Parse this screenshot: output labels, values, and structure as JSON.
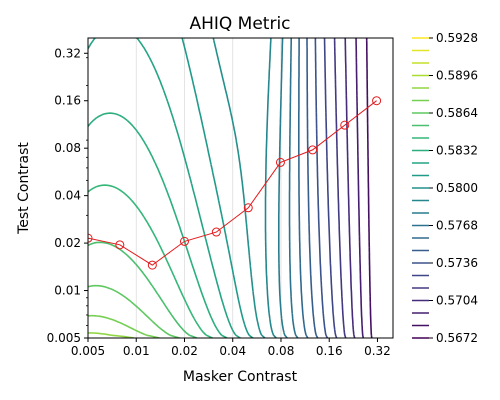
{
  "chart_data": {
    "type": "contour",
    "title": "AHIQ Metric",
    "xlabel": "Masker Contrast",
    "ylabel": "Test Contrast",
    "x_scale": "log",
    "y_scale": "log",
    "xlim": [
      0.005,
      0.4
    ],
    "ylim": [
      0.005,
      0.4
    ],
    "x_ticks": [
      0.005,
      0.01,
      0.02,
      0.04,
      0.08,
      0.16,
      0.32
    ],
    "x_tick_labels": [
      "0.005",
      "0.01",
      "0.02",
      "0.04",
      "0.08",
      "0.16",
      "0.32"
    ],
    "y_ticks": [
      0.005,
      0.01,
      0.02,
      0.04,
      0.08,
      0.16,
      0.32
    ],
    "y_tick_labels": [
      "0.005",
      "0.01",
      "0.02",
      "0.04",
      "0.08",
      "0.16",
      "0.32"
    ],
    "colorbar": {
      "colormap": "viridis",
      "ticks": [
        0.5672,
        0.5704,
        0.5736,
        0.5768,
        0.58,
        0.5832,
        0.5864,
        0.5896,
        0.5928
      ],
      "tick_labels": [
        "0.5672",
        "0.5704",
        "0.5736",
        "0.5768",
        "0.5800",
        "0.5832",
        "0.5864",
        "0.5896",
        "0.5928"
      ],
      "range": [
        0.5672,
        0.5928
      ]
    },
    "threshold_series": {
      "color": "#e31a1c",
      "marker": "open-circle",
      "x": [
        0.005,
        0.0079,
        0.0126,
        0.02,
        0.0316,
        0.05,
        0.0794,
        0.126,
        0.2,
        0.316
      ],
      "y": [
        0.0215,
        0.0195,
        0.0145,
        0.0205,
        0.0235,
        0.0335,
        0.065,
        0.078,
        0.112,
        0.16
      ]
    }
  }
}
